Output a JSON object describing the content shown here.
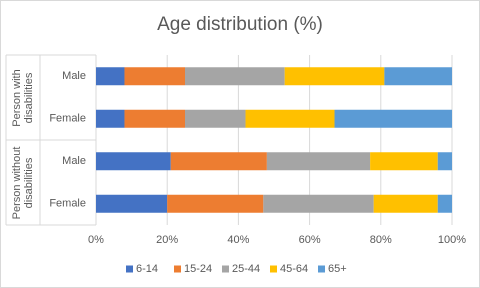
{
  "chart_data": {
    "type": "stacked-bar-horizontal",
    "title": "Age distribution (%)",
    "groups": [
      {
        "label": "Person with disabilities",
        "categories": [
          "Male",
          "Female"
        ]
      },
      {
        "label": "Person without disabilities",
        "categories": [
          "Male",
          "Female"
        ]
      }
    ],
    "series": [
      {
        "name": "6-14",
        "color": "#4472c4",
        "values": [
          8,
          8,
          21,
          20
        ]
      },
      {
        "name": "15-24",
        "color": "#ed7d31",
        "values": [
          17,
          17,
          27,
          27
        ]
      },
      {
        "name": "25-44",
        "color": "#a5a5a5",
        "values": [
          28,
          17,
          29,
          31
        ]
      },
      {
        "name": "45-64",
        "color": "#ffc000",
        "values": [
          28,
          25,
          19,
          18
        ]
      },
      {
        "name": "65+",
        "color": "#5b9bd5",
        "values": [
          19,
          33,
          4,
          4
        ]
      }
    ],
    "xlim": [
      0,
      100
    ],
    "xticks": [
      {
        "value": 0,
        "label": "0%"
      },
      {
        "value": 20,
        "label": "20%"
      },
      {
        "value": 40,
        "label": "40%"
      },
      {
        "value": 60,
        "label": "60%"
      },
      {
        "value": 80,
        "label": "80%"
      },
      {
        "value": 100,
        "label": "100%"
      }
    ],
    "grid": true,
    "legend": "bottom"
  }
}
